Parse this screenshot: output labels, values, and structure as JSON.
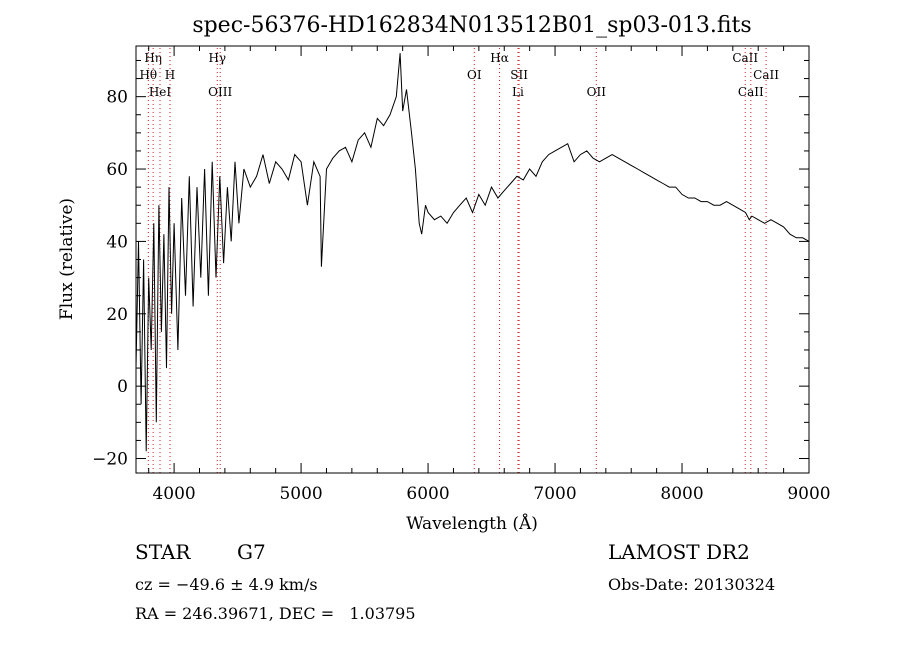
{
  "chart_data": {
    "type": "line",
    "title": "spec-56376-HD162834N013512B01_sp03-013.fits",
    "xlabel": "Wavelength (Å)",
    "ylabel": "Flux (relative)",
    "xlim": [
      3700,
      9000
    ],
    "ylim": [
      -24,
      94
    ],
    "x_ticks": [
      4000,
      5000,
      6000,
      7000,
      8000,
      9000
    ],
    "y_ticks": [
      -20,
      0,
      20,
      40,
      60,
      80
    ],
    "grid": false,
    "series": [
      {
        "color": "#000000",
        "x": [
          3700,
          3720,
          3740,
          3760,
          3780,
          3800,
          3820,
          3840,
          3860,
          3880,
          3900,
          3920,
          3940,
          3960,
          3980,
          4000,
          4030,
          4060,
          4090,
          4120,
          4150,
          4180,
          4210,
          4240,
          4270,
          4300,
          4330,
          4360,
          4390,
          4420,
          4450,
          4480,
          4510,
          4550,
          4600,
          4650,
          4700,
          4750,
          4800,
          4850,
          4900,
          4950,
          5000,
          5050,
          5100,
          5150,
          5160,
          5200,
          5250,
          5300,
          5350,
          5400,
          5450,
          5500,
          5550,
          5600,
          5650,
          5700,
          5750,
          5780,
          5800,
          5830,
          5870,
          5900,
          5930,
          5950,
          5980,
          6000,
          6050,
          6100,
          6150,
          6200,
          6250,
          6300,
          6350,
          6400,
          6450,
          6500,
          6550,
          6600,
          6650,
          6700,
          6750,
          6800,
          6850,
          6900,
          6950,
          7000,
          7050,
          7100,
          7150,
          7200,
          7250,
          7300,
          7350,
          7400,
          7450,
          7500,
          7550,
          7600,
          7650,
          7700,
          7750,
          7800,
          7850,
          7900,
          7950,
          8000,
          8050,
          8100,
          8150,
          8200,
          8250,
          8300,
          8350,
          8400,
          8450,
          8500,
          8530,
          8550,
          8600,
          8650,
          8700,
          8750,
          8800,
          8850,
          8900,
          8950,
          9000
        ],
        "y": [
          5,
          40,
          -5,
          35,
          -18,
          30,
          10,
          45,
          -10,
          50,
          15,
          42,
          5,
          55,
          20,
          45,
          10,
          52,
          25,
          58,
          22,
          55,
          30,
          60,
          25,
          62,
          30,
          58,
          34,
          55,
          40,
          62,
          45,
          60,
          55,
          58,
          64,
          56,
          62,
          60,
          57,
          64,
          62,
          50,
          62,
          58,
          33,
          60,
          63,
          65,
          66,
          62,
          68,
          70,
          66,
          74,
          72,
          75,
          80,
          92,
          76,
          82,
          70,
          60,
          45,
          42,
          50,
          48,
          46,
          47,
          45,
          48,
          50,
          52,
          48,
          53,
          50,
          55,
          52,
          54,
          56,
          58,
          57,
          60,
          58,
          62,
          64,
          65,
          66,
          67,
          62,
          64,
          65,
          63,
          62,
          63,
          64,
          63,
          62,
          61,
          60,
          59,
          58,
          57,
          56,
          55,
          55,
          53,
          52,
          52,
          51,
          51,
          50,
          50,
          51,
          50,
          49,
          48,
          46,
          47,
          46,
          45,
          46,
          45,
          44,
          42,
          41,
          41,
          40
        ]
      }
    ],
    "line_markers": [
      {
        "label": "Hη",
        "x": 3835,
        "row": 1,
        "color": "#d01c1c"
      },
      {
        "label": "Hθ",
        "x": 3797,
        "row": 2,
        "color": "#d01c1c"
      },
      {
        "label": "H",
        "x": 3968,
        "row": 2,
        "color": "#d01c1c"
      },
      {
        "label": "HeI",
        "x": 3889,
        "row": 3,
        "color": "#d01c1c"
      },
      {
        "label": "Hγ",
        "x": 4340,
        "row": 1,
        "color": "#d01c1c"
      },
      {
        "label": "OIII",
        "x": 4363,
        "row": 3,
        "color": "#d01c1c"
      },
      {
        "label": "Hα",
        "x": 6563,
        "row": 1,
        "color": "#d01c1c"
      },
      {
        "label": "OI",
        "x": 6364,
        "row": 2,
        "color": "#d01c1c"
      },
      {
        "label": "SII",
        "x": 6717,
        "row": 2,
        "color": "#d01c1c"
      },
      {
        "label": "Li",
        "x": 6708,
        "row": 3,
        "color": "#d01c1c"
      },
      {
        "label": "OII",
        "x": 7325,
        "row": 3,
        "color": "#d01c1c"
      },
      {
        "label": "CaII",
        "x": 8498,
        "row": 1,
        "color": "#d01c1c"
      },
      {
        "label": "CaII",
        "x": 8662,
        "row": 2,
        "color": "#d01c1c"
      },
      {
        "label": "CaII",
        "x": 8542,
        "row": 3,
        "color": "#d01c1c"
      }
    ]
  },
  "info": {
    "object_class": "STAR",
    "subclass": "G7",
    "survey": "LAMOST DR2",
    "redshift_line": "cz = −49.6 ± 4.9 km/s",
    "obs_date_line": "Obs-Date: 20130324",
    "coords_line": "RA = 246.39671, DEC =   1.03795"
  }
}
